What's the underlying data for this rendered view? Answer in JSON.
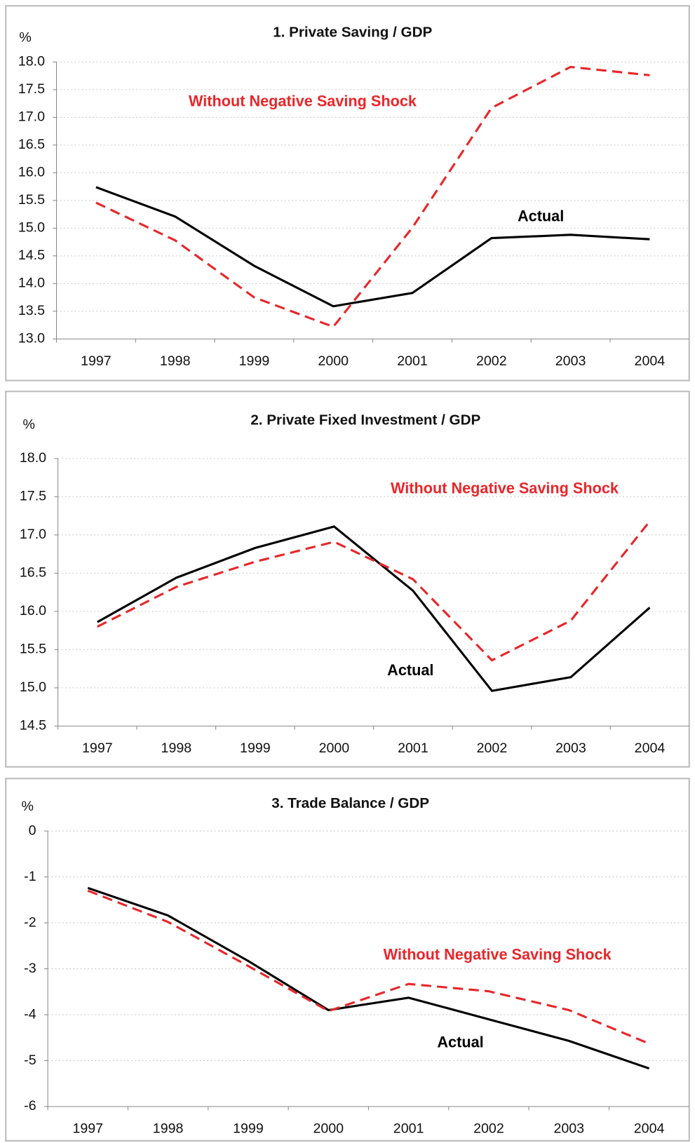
{
  "chart_data": [
    {
      "type": "line",
      "title": "1. Private Saving / GDP",
      "y_label": "%",
      "categories": [
        "1997",
        "1998",
        "1999",
        "2000",
        "2001",
        "2002",
        "2003",
        "2004"
      ],
      "ylim": [
        13,
        18
      ],
      "yticks": [
        {
          "value": 13,
          "label": "13.0"
        },
        {
          "value": 13.5,
          "label": "13.5"
        },
        {
          "value": 14,
          "label": "14.0"
        },
        {
          "value": 14.5,
          "label": "14.5"
        },
        {
          "value": 15,
          "label": "15.0"
        },
        {
          "value": 15.5,
          "label": "15.5"
        },
        {
          "value": 16,
          "label": "16.0"
        },
        {
          "value": 16.5,
          "label": "16.5"
        },
        {
          "value": 17,
          "label": "17.0"
        },
        {
          "value": 17.5,
          "label": "17.5"
        },
        {
          "value": 18,
          "label": "18.0"
        }
      ],
      "grid": true,
      "series": [
        {
          "name": "Actual",
          "color": "#000000",
          "style": "solid",
          "values": [
            15.74,
            15.21,
            14.32,
            13.59,
            13.83,
            14.82,
            14.88,
            14.8
          ]
        },
        {
          "name": "Without Negative Saving Shock",
          "color": "#e8262a",
          "style": "dashed",
          "values": [
            15.46,
            14.78,
            13.75,
            13.22,
            15.01,
            17.17,
            17.91,
            17.76
          ]
        }
      ]
    },
    {
      "type": "line",
      "title": "2. Private Fixed Investment / GDP",
      "y_label": "%",
      "categories": [
        "1997",
        "1998",
        "1999",
        "2000",
        "2001",
        "2002",
        "2003",
        "2004"
      ],
      "ylim": [
        14.5,
        18
      ],
      "yticks": [
        {
          "value": 14.5,
          "label": "14.5"
        },
        {
          "value": 15,
          "label": "15.0"
        },
        {
          "value": 15.5,
          "label": "15.5"
        },
        {
          "value": 16,
          "label": "16.0"
        },
        {
          "value": 16.5,
          "label": "16.5"
        },
        {
          "value": 17,
          "label": "17.0"
        },
        {
          "value": 17.5,
          "label": "17.5"
        },
        {
          "value": 18,
          "label": "18.0"
        }
      ],
      "grid": true,
      "series": [
        {
          "name": "Actual",
          "color": "#000000",
          "style": "solid",
          "values": [
            15.86,
            16.44,
            16.83,
            17.11,
            16.27,
            14.96,
            15.14,
            16.05
          ]
        },
        {
          "name": "Without Negative Saving Shock",
          "color": "#e8262a",
          "style": "dashed",
          "values": [
            15.8,
            16.32,
            16.65,
            16.91,
            16.42,
            15.36,
            15.88,
            17.18
          ]
        }
      ]
    },
    {
      "type": "line",
      "title": "3. Trade Balance / GDP",
      "y_label": "%",
      "categories": [
        "1997",
        "1998",
        "1999",
        "2000",
        "2001",
        "2002",
        "2003",
        "2004"
      ],
      "ylim": [
        -6,
        0
      ],
      "yticks": [
        -6,
        -5,
        -4,
        -3,
        -2,
        -1,
        0
      ],
      "grid": true,
      "series": [
        {
          "name": "Actual",
          "color": "#000000",
          "style": "solid",
          "values": [
            -1.24,
            -1.84,
            -2.83,
            -3.9,
            -3.63,
            -4.1,
            -4.57,
            -5.17
          ]
        },
        {
          "name": "Without Negative Saving Shock",
          "color": "#e8262a",
          "style": "dashed",
          "values": [
            -1.3,
            -1.98,
            -2.94,
            -3.92,
            -3.33,
            -3.49,
            -3.9,
            -4.63
          ]
        }
      ]
    }
  ]
}
